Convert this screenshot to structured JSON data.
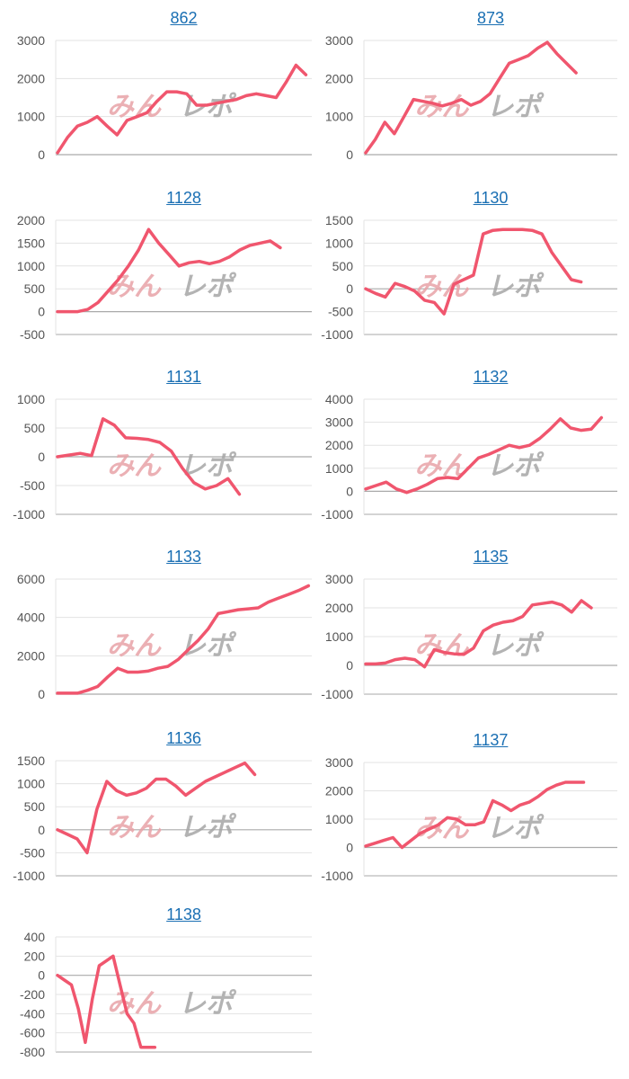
{
  "colors": {
    "line": "#f0566e",
    "grid": "#e3e3e3",
    "axis": "#aaaaaa",
    "title": "#1a6fb3",
    "tick": "#555555"
  },
  "watermark": {
    "text": "みんレポ",
    "color_pink": "#e8a3a8",
    "color_gray": "#a6a6a6"
  },
  "chart_data": [
    {
      "type": "line",
      "title": "862",
      "ylim": [
        0,
        3000
      ],
      "yticks": [
        0,
        1000,
        2000,
        3000
      ],
      "x": [
        0,
        1,
        2,
        3,
        4,
        5,
        6,
        7,
        8,
        9,
        10,
        11,
        12,
        13,
        14,
        15,
        16,
        17,
        18,
        19,
        20,
        21,
        22,
        23,
        24,
        25
      ],
      "values": [
        50,
        450,
        750,
        850,
        1000,
        750,
        520,
        900,
        1000,
        1100,
        1400,
        1650,
        1650,
        1600,
        1300,
        1300,
        1350,
        1400,
        1450,
        1550,
        1600,
        1550,
        1500,
        1900,
        2350,
        2100
      ]
    },
    {
      "type": "line",
      "title": "873",
      "ylim": [
        0,
        3000
      ],
      "yticks": [
        0,
        1000,
        2000,
        3000
      ],
      "x": [
        0,
        1,
        2,
        3,
        4,
        5,
        6,
        7,
        8,
        9,
        10,
        11,
        12,
        13,
        14,
        15,
        16,
        17,
        18,
        19,
        20,
        21,
        22
      ],
      "values": [
        50,
        400,
        850,
        550,
        1000,
        1450,
        1400,
        1350,
        1280,
        1350,
        1450,
        1300,
        1400,
        1600,
        2000,
        2400,
        2500,
        2600,
        2800,
        2950,
        2650,
        2400,
        2150
      ]
    },
    {
      "type": "line",
      "title": "1128",
      "ylim": [
        -500,
        2000
      ],
      "yticks": [
        -500,
        0,
        500,
        1000,
        1500,
        2000
      ],
      "x": [
        0,
        1,
        2,
        3,
        4,
        5,
        6,
        7,
        8,
        9,
        10,
        11,
        12,
        13,
        14,
        15,
        16,
        17,
        18,
        19,
        20,
        21,
        22
      ],
      "values": [
        0,
        0,
        0,
        50,
        200,
        450,
        700,
        1000,
        1350,
        1800,
        1500,
        1250,
        1000,
        1070,
        1100,
        1050,
        1100,
        1200,
        1350,
        1450,
        1500,
        1550,
        1400
      ]
    },
    {
      "type": "line",
      "title": "1130",
      "ylim": [
        -1000,
        1500
      ],
      "yticks": [
        -1000,
        -500,
        0,
        500,
        1000,
        1500
      ],
      "x": [
        0,
        1,
        2,
        3,
        4,
        5,
        6,
        7,
        8,
        9,
        10,
        11,
        12,
        13,
        14,
        15,
        16,
        17,
        18,
        19,
        20,
        21,
        22
      ],
      "values": [
        0,
        -100,
        -180,
        120,
        50,
        -50,
        -250,
        -300,
        -550,
        100,
        200,
        300,
        1200,
        1280,
        1300,
        1300,
        1300,
        1280,
        1200,
        800,
        500,
        200,
        150
      ]
    },
    {
      "type": "line",
      "title": "1131",
      "ylim": [
        -1000,
        1000
      ],
      "yticks": [
        -1000,
        -500,
        0,
        500,
        1000
      ],
      "x": [
        0,
        1,
        2,
        3,
        4,
        5,
        6,
        7,
        8,
        9,
        10,
        11,
        12,
        13,
        14,
        15,
        16
      ],
      "values": [
        0,
        30,
        60,
        20,
        660,
        550,
        330,
        320,
        300,
        250,
        100,
        -200,
        -450,
        -560,
        -500,
        -380,
        -650
      ]
    },
    {
      "type": "line",
      "title": "1132",
      "ylim": [
        -1000,
        4000
      ],
      "yticks": [
        -1000,
        0,
        1000,
        2000,
        3000,
        4000
      ],
      "x": [
        0,
        1,
        2,
        3,
        4,
        5,
        6,
        7,
        8,
        9,
        10,
        11,
        12,
        13,
        14,
        15,
        16,
        17,
        18,
        19,
        20,
        21,
        22,
        23
      ],
      "values": [
        100,
        250,
        400,
        100,
        -50,
        100,
        300,
        550,
        600,
        550,
        1000,
        1450,
        1600,
        1800,
        2000,
        1900,
        2000,
        2300,
        2700,
        3150,
        2750,
        2650,
        2700,
        3200
      ]
    },
    {
      "type": "line",
      "title": "1133",
      "ylim": [
        0,
        6000
      ],
      "yticks": [
        0,
        2000,
        4000,
        6000
      ],
      "x": [
        0,
        1,
        2,
        3,
        4,
        5,
        6,
        7,
        8,
        9,
        10,
        11,
        12,
        13,
        14,
        15,
        16,
        17,
        18,
        19,
        20,
        21,
        22,
        23,
        24,
        25
      ],
      "values": [
        50,
        50,
        50,
        200,
        400,
        900,
        1350,
        1150,
        1150,
        1200,
        1350,
        1450,
        1800,
        2300,
        2800,
        3400,
        4200,
        4300,
        4400,
        4450,
        4500,
        4800,
        5000,
        5200,
        5400,
        5650
      ]
    },
    {
      "type": "line",
      "title": "1135",
      "ylim": [
        -1000,
        3000
      ],
      "yticks": [
        -1000,
        0,
        1000,
        2000,
        3000
      ],
      "x": [
        0,
        1,
        2,
        3,
        4,
        5,
        6,
        7,
        8,
        9,
        10,
        11,
        12,
        13,
        14,
        15,
        16,
        17,
        18,
        19,
        20,
        21,
        22,
        23
      ],
      "values": [
        50,
        50,
        80,
        200,
        250,
        200,
        -50,
        550,
        450,
        400,
        380,
        600,
        1200,
        1400,
        1500,
        1550,
        1700,
        2100,
        2150,
        2200,
        2100,
        1850,
        2250,
        2000
      ]
    },
    {
      "type": "line",
      "title": "1136",
      "ylim": [
        -1000,
        1500
      ],
      "yticks": [
        -1000,
        -500,
        0,
        500,
        1000,
        1500
      ],
      "x": [
        0,
        1,
        2,
        3,
        4,
        5,
        6,
        7,
        8,
        9,
        10,
        11,
        12,
        13,
        14,
        15,
        16,
        17,
        18,
        19,
        20
      ],
      "values": [
        0,
        -100,
        -200,
        -500,
        450,
        1050,
        850,
        750,
        800,
        900,
        1100,
        1100,
        950,
        750,
        900,
        1050,
        1150,
        1250,
        1350,
        1450,
        1200
      ]
    },
    {
      "type": "line",
      "title": "1137",
      "ylim": [
        -1000,
        3000
      ],
      "yticks": [
        -1000,
        0,
        1000,
        2000,
        3000
      ],
      "x": [
        0,
        1,
        2,
        3,
        4,
        5,
        6,
        7,
        8,
        9,
        10,
        11,
        12,
        13,
        14,
        15,
        16,
        17,
        18,
        19,
        20,
        21,
        22,
        23,
        24
      ],
      "values": [
        50,
        150,
        250,
        350,
        0,
        250,
        500,
        650,
        800,
        1050,
        1000,
        800,
        800,
        900,
        1650,
        1500,
        1300,
        1500,
        1600,
        1800,
        2050,
        2200,
        2300,
        2300,
        2300
      ]
    },
    {
      "type": "line",
      "title": "1138",
      "ylim": [
        -800,
        400
      ],
      "yticks": [
        -800,
        -600,
        -400,
        -200,
        0,
        200,
        400
      ],
      "x": [
        0,
        1,
        2,
        3,
        4,
        5,
        6,
        7,
        8,
        9,
        10,
        11,
        12,
        13,
        14
      ],
      "values": [
        0,
        -50,
        -100,
        -350,
        -700,
        -250,
        100,
        150,
        200,
        -100,
        -400,
        -500,
        -750,
        -750,
        -750
      ]
    }
  ]
}
